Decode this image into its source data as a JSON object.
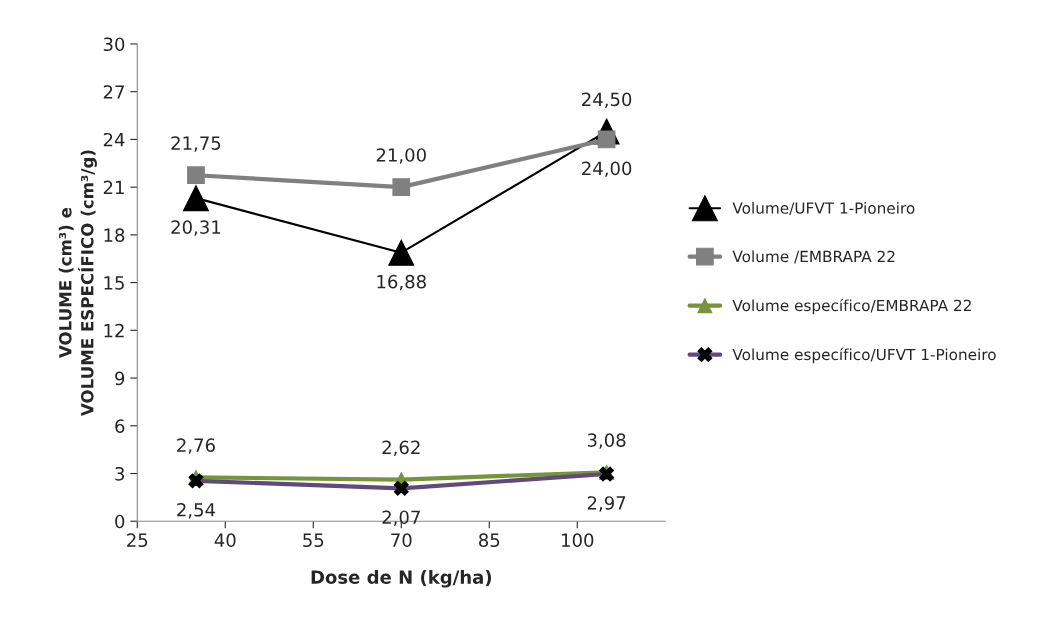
{
  "chart_data": {
    "type": "line",
    "xlabel": "Dose de N (kg/ha)",
    "ylabel": "VOLUME (cm³) e\nVOLUME ESPECÍFICO (cm³/g)",
    "x": [
      35,
      70,
      105
    ],
    "series": [
      {
        "name": "Volume/UFVT 1-Pioneiro",
        "color": "#000000",
        "marker": "triangle",
        "values": [
          20.31,
          16.88,
          24.5
        ],
        "value_labels": [
          "20,31",
          "16,88",
          "24,50"
        ]
      },
      {
        "name": "Volume /EMBRAPA 22",
        "color": "#808080",
        "marker": "square",
        "values": [
          21.75,
          21.0,
          24.0
        ],
        "value_labels": [
          "21,75",
          "21,00",
          "24,00"
        ]
      },
      {
        "name": "Volume específico/EMBRAPA 22",
        "color": "#77933c",
        "marker": "triangle",
        "values": [
          2.76,
          2.62,
          3.08
        ],
        "value_labels": [
          "2,76",
          "2,62",
          "3,08"
        ]
      },
      {
        "name": "Volume específico/UFVT 1-Pioneiro",
        "color": "#604a7b",
        "marker": "cross",
        "values": [
          2.54,
          2.07,
          2.97
        ],
        "value_labels": [
          "2,54",
          "2,07",
          "2,97"
        ]
      }
    ],
    "xlim": [
      25,
      115
    ],
    "xticks": [
      25,
      40,
      55,
      70,
      85,
      100
    ],
    "ylim": [
      0,
      30
    ],
    "yticks": [
      0,
      3,
      6,
      9,
      12,
      15,
      18,
      21,
      24,
      27,
      30
    ],
    "grid": false,
    "legend": "right"
  }
}
